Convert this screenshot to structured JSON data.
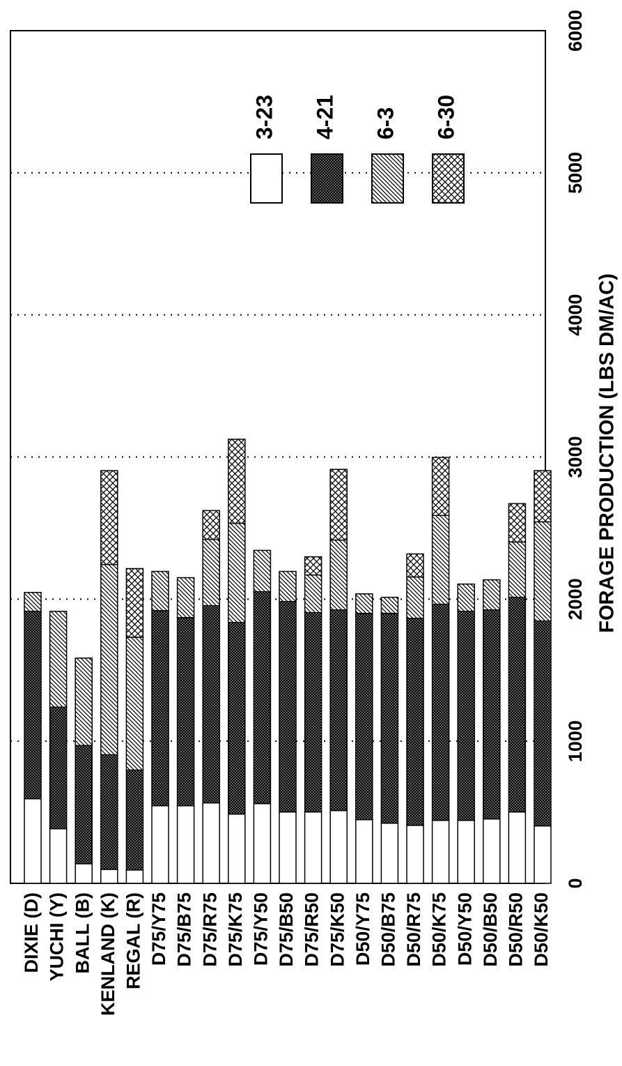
{
  "chart_data": {
    "type": "stacked_bar",
    "x_label": "FORAGE PRODUCTION (LBS DM/AC)",
    "categories": [
      "DIXIE (D)",
      "YUCHI (Y)",
      "BALL (B)",
      "KENLAND (K)",
      "REGAL (R)",
      "D75/Y75",
      "D75/B75",
      "D75/R75",
      "D75/K75",
      "D75/Y50",
      "D75/B50",
      "D75/R50",
      "D75/K50",
      "D50/Y75",
      "D50/B75",
      "D50/R75",
      "D50/K75",
      "D50/Y50",
      "D50/B50",
      "D50/R50",
      "D50/K50"
    ],
    "series": [
      {
        "name": "3-23",
        "color": "#ffffff",
        "pattern": "plain",
        "values": [
          595,
          384,
          138,
          98,
          94,
          546,
          546,
          566,
          487,
          561,
          502,
          502,
          512,
          448,
          423,
          408,
          443,
          443,
          453,
          502,
          404
        ]
      },
      {
        "name": "4-21",
        "color": "#000000",
        "pattern": "dense",
        "values": [
          1319,
          856,
          832,
          807,
          703,
          1373,
          1324,
          1388,
          1349,
          1491,
          1481,
          1403,
          1412,
          1452,
          1477,
          1457,
          1521,
          1471,
          1471,
          1511,
          1442
        ]
      },
      {
        "name": "6-3",
        "color": "#000000",
        "pattern": "diagonal",
        "values": [
          133,
          674,
          615,
          1339,
          935,
          276,
          281,
          467,
          698,
          291,
          212,
          265,
          492,
          137,
          113,
          291,
          625,
          192,
          212,
          389,
          698
        ]
      },
      {
        "name": "6-30",
        "color": "#000000",
        "pattern": "crosshatch",
        "values": [
          0,
          0,
          0,
          660,
          483,
          0,
          0,
          202,
          591,
          0,
          0,
          128,
          497,
          0,
          0,
          162,
          408,
          0,
          0,
          270,
          360
        ]
      }
    ],
    "ylim": [
      0,
      6000
    ],
    "yticks": [
      0,
      1000,
      2000,
      3000,
      4000,
      5000,
      6000
    ],
    "grid": true
  }
}
